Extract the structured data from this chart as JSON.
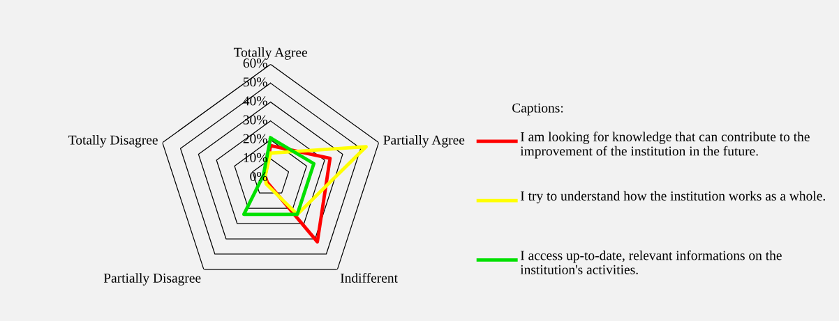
{
  "chart_data": {
    "type": "radar",
    "categories": [
      "Totally Agree",
      "Partially Agree",
      "Indifferent",
      "Partially Disagree",
      "Totally Disagree"
    ],
    "ylim": [
      0,
      60
    ],
    "yticks": [
      {
        "value": 0,
        "label": "0%"
      },
      {
        "value": 10,
        "label": "10%"
      },
      {
        "value": 20,
        "label": "20%"
      },
      {
        "value": 30,
        "label": "30%"
      },
      {
        "value": 40,
        "label": "40%"
      },
      {
        "value": 50,
        "label": "50%"
      },
      {
        "value": 60,
        "label": "60%"
      }
    ],
    "legend_title": "Captions:",
    "legend": "right",
    "series": [
      {
        "name": "I am looking for knowledge that can contribute to the improvement of the institution in the future.",
        "color": "#ff0000",
        "values": [
          17,
          33,
          42,
          3,
          3
        ]
      },
      {
        "name": "I try to understand how the institution works as a whole.",
        "color": "#ffff00",
        "values": [
          13,
          53,
          24,
          4,
          3
        ]
      },
      {
        "name": "I access up-to-date, relevant informations on the institution's activities.",
        "color": "#00e000",
        "values": [
          21,
          24,
          24,
          24,
          4
        ]
      }
    ]
  }
}
